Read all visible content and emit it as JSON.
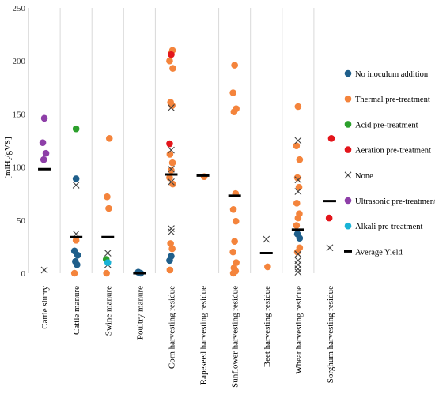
{
  "chart_data": {
    "type": "scatter",
    "title": "",
    "xlabel": "",
    "ylabel": "[mlH₂/gVS]",
    "ylim": [
      0,
      250
    ],
    "yticks": [
      0,
      50,
      100,
      150,
      200,
      250
    ],
    "grid": "vertical category separators",
    "legend_position": "right",
    "categories": [
      "Cattle slurry",
      "Cattle manure",
      "Swine manure",
      "Poultry manure",
      "Corn harvesting residue",
      "Rapeseed harvesting residue",
      "Sunflower harvesting residue",
      "Beet harvesting residue",
      "Wheat harvesting residue",
      "Sorghum harvesting residue"
    ],
    "series": [
      {
        "name": "No inoculum addition",
        "marker": "circle",
        "color": "#1f5f8b",
        "points": [
          {
            "x": "Cattle manure",
            "y": 89
          },
          {
            "x": "Cattle manure",
            "y": 21
          },
          {
            "x": "Cattle manure",
            "y": 17
          },
          {
            "x": "Cattle manure",
            "y": 11
          },
          {
            "x": "Cattle manure",
            "y": 8
          },
          {
            "x": "Poultry manure",
            "y": 1
          },
          {
            "x": "Poultry manure",
            "y": 0
          },
          {
            "x": "Corn harvesting residue",
            "y": 16
          },
          {
            "x": "Corn harvesting residue",
            "y": 12
          },
          {
            "x": "Wheat harvesting residue",
            "y": 33
          },
          {
            "x": "Wheat harvesting residue",
            "y": 37
          }
        ]
      },
      {
        "name": "Thermal pre-treatment",
        "marker": "circle",
        "color": "#f4843c",
        "points": [
          {
            "x": "Cattle manure",
            "y": 31
          },
          {
            "x": "Cattle manure",
            "y": 0
          },
          {
            "x": "Swine manure",
            "y": 127
          },
          {
            "x": "Swine manure",
            "y": 72
          },
          {
            "x": "Swine manure",
            "y": 61
          },
          {
            "x": "Swine manure",
            "y": 0
          },
          {
            "x": "Corn harvesting residue",
            "y": 210
          },
          {
            "x": "Corn harvesting residue",
            "y": 207
          },
          {
            "x": "Corn harvesting residue",
            "y": 200
          },
          {
            "x": "Corn harvesting residue",
            "y": 193
          },
          {
            "x": "Corn harvesting residue",
            "y": 161
          },
          {
            "x": "Corn harvesting residue",
            "y": 158
          },
          {
            "x": "Corn harvesting residue",
            "y": 112
          },
          {
            "x": "Corn harvesting residue",
            "y": 104
          },
          {
            "x": "Corn harvesting residue",
            "y": 97
          },
          {
            "x": "Corn harvesting residue",
            "y": 90
          },
          {
            "x": "Corn harvesting residue",
            "y": 84
          },
          {
            "x": "Corn harvesting residue",
            "y": 28
          },
          {
            "x": "Corn harvesting residue",
            "y": 23
          },
          {
            "x": "Corn harvesting residue",
            "y": 3
          },
          {
            "x": "Rapeseed harvesting residue",
            "y": 91
          },
          {
            "x": "Sunflower harvesting residue",
            "y": 196
          },
          {
            "x": "Sunflower harvesting residue",
            "y": 170
          },
          {
            "x": "Sunflower harvesting residue",
            "y": 155
          },
          {
            "x": "Sunflower harvesting residue",
            "y": 152
          },
          {
            "x": "Sunflower harvesting residue",
            "y": 75
          },
          {
            "x": "Sunflower harvesting residue",
            "y": 60
          },
          {
            "x": "Sunflower harvesting residue",
            "y": 49
          },
          {
            "x": "Sunflower harvesting residue",
            "y": 30
          },
          {
            "x": "Sunflower harvesting residue",
            "y": 20
          },
          {
            "x": "Sunflower harvesting residue",
            "y": 10
          },
          {
            "x": "Sunflower harvesting residue",
            "y": 5
          },
          {
            "x": "Sunflower harvesting residue",
            "y": 2
          },
          {
            "x": "Sunflower harvesting residue",
            "y": 0
          },
          {
            "x": "Beet harvesting residue",
            "y": 6
          },
          {
            "x": "Wheat harvesting residue",
            "y": 157
          },
          {
            "x": "Wheat harvesting residue",
            "y": 120
          },
          {
            "x": "Wheat harvesting residue",
            "y": 107
          },
          {
            "x": "Wheat harvesting residue",
            "y": 90
          },
          {
            "x": "Wheat harvesting residue",
            "y": 81
          },
          {
            "x": "Wheat harvesting residue",
            "y": 66
          },
          {
            "x": "Wheat harvesting residue",
            "y": 56
          },
          {
            "x": "Wheat harvesting residue",
            "y": 52
          },
          {
            "x": "Wheat harvesting residue",
            "y": 45
          },
          {
            "x": "Wheat harvesting residue",
            "y": 24
          },
          {
            "x": "Wheat harvesting residue",
            "y": 20
          }
        ]
      },
      {
        "name": "Acid pre-treatment",
        "marker": "circle",
        "color": "#2ca02c",
        "points": [
          {
            "x": "Cattle manure",
            "y": 136
          },
          {
            "x": "Swine manure",
            "y": 13
          }
        ]
      },
      {
        "name": "Aeration pre-treatment",
        "marker": "circle",
        "color": "#e3151b",
        "points": [
          {
            "x": "Corn harvesting residue",
            "y": 206
          },
          {
            "x": "Corn harvesting residue",
            "y": 122
          },
          {
            "x": "Sorghum harvesting residue",
            "y": 127
          },
          {
            "x": "Sorghum harvesting residue",
            "y": 52
          }
        ]
      },
      {
        "name": "None",
        "marker": "x",
        "color": "#404040",
        "points": [
          {
            "x": "Cattle slurry",
            "y": 3
          },
          {
            "x": "Cattle manure",
            "y": 83
          },
          {
            "x": "Cattle manure",
            "y": 37
          },
          {
            "x": "Swine manure",
            "y": 19
          },
          {
            "x": "Swine manure",
            "y": 8
          },
          {
            "x": "Corn harvesting residue",
            "y": 156
          },
          {
            "x": "Corn harvesting residue",
            "y": 116
          },
          {
            "x": "Corn harvesting residue",
            "y": 98
          },
          {
            "x": "Corn harvesting residue",
            "y": 86
          },
          {
            "x": "Corn harvesting residue",
            "y": 42
          },
          {
            "x": "Corn harvesting residue",
            "y": 39
          },
          {
            "x": "Beet harvesting residue",
            "y": 32
          },
          {
            "x": "Wheat harvesting residue",
            "y": 125
          },
          {
            "x": "Wheat harvesting residue",
            "y": 88
          },
          {
            "x": "Wheat harvesting residue",
            "y": 77
          },
          {
            "x": "Wheat harvesting residue",
            "y": 18
          },
          {
            "x": "Wheat harvesting residue",
            "y": 12
          },
          {
            "x": "Wheat harvesting residue",
            "y": 8
          },
          {
            "x": "Wheat harvesting residue",
            "y": 4
          },
          {
            "x": "Wheat harvesting residue",
            "y": 1
          },
          {
            "x": "Sorghum harvesting residue",
            "y": 24
          }
        ]
      },
      {
        "name": "Ultrasonic pre-treatment",
        "marker": "circle",
        "color": "#8e3fa8",
        "points": [
          {
            "x": "Cattle slurry",
            "y": 146
          },
          {
            "x": "Cattle slurry",
            "y": 123
          },
          {
            "x": "Cattle slurry",
            "y": 113
          },
          {
            "x": "Cattle slurry",
            "y": 107
          }
        ]
      },
      {
        "name": "Alkali pre-treatment",
        "marker": "circle",
        "color": "#19b3d6",
        "points": [
          {
            "x": "Swine manure",
            "y": 10
          }
        ]
      },
      {
        "name": "Average Yield",
        "marker": "dash",
        "color": "#000000",
        "points": [
          {
            "x": "Cattle slurry",
            "y": 98
          },
          {
            "x": "Cattle manure",
            "y": 34
          },
          {
            "x": "Swine manure",
            "y": 34
          },
          {
            "x": "Poultry manure",
            "y": 0
          },
          {
            "x": "Corn harvesting residue",
            "y": 93
          },
          {
            "x": "Rapeseed harvesting residue",
            "y": 92
          },
          {
            "x": "Sunflower harvesting residue",
            "y": 73
          },
          {
            "x": "Beet harvesting residue",
            "y": 19
          },
          {
            "x": "Wheat harvesting residue",
            "y": 41
          },
          {
            "x": "Sorghum harvesting residue",
            "y": 68
          }
        ]
      }
    ]
  }
}
